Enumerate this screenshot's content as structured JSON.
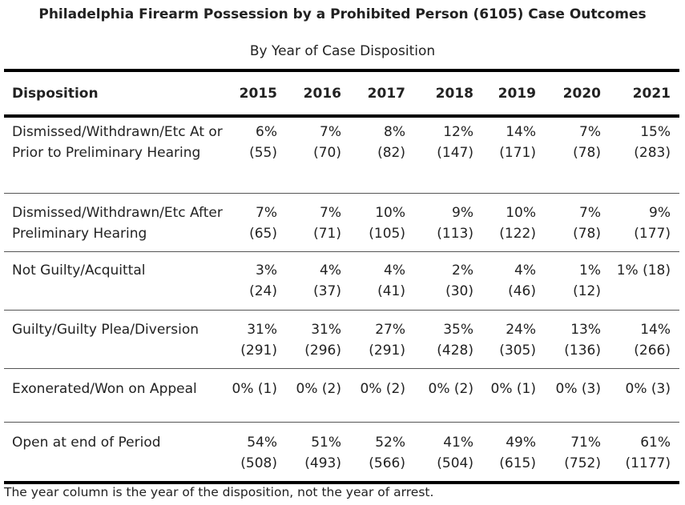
{
  "title": "Philadelphia Firearm Possession by a Prohibited Person (6105) Case Outcomes",
  "subtitle": "By Year of Case Disposition",
  "header": {
    "disposition": "Disposition",
    "years": [
      "2015",
      "2016",
      "2017",
      "2018",
      "2019",
      "2020",
      "2021"
    ]
  },
  "rows": [
    {
      "label": "Dismissed/Withdrawn/Etc At or Prior to Preliminary Hearing",
      "pct": [
        "6%",
        "7%",
        "8%",
        "12%",
        "14%",
        "7%",
        "15%"
      ],
      "count": [
        "(55)",
        "(70)",
        "(82)",
        "(147)",
        "(171)",
        "(78)",
        "(283)"
      ]
    },
    {
      "label": "Dismissed/Withdrawn/Etc After Preliminary Hearing",
      "pct": [
        "7%",
        "7%",
        "10%",
        "9%",
        "10%",
        "7%",
        "9%"
      ],
      "count": [
        "(65)",
        "(71)",
        "(105)",
        "(113)",
        "(122)",
        "(78)",
        "(177)"
      ]
    },
    {
      "label": "Not Guilty/Acquittal",
      "pct": [
        "3%",
        "4%",
        "4%",
        "2%",
        "4%",
        "1%",
        "1% (18)"
      ],
      "count": [
        "(24)",
        "(37)",
        "(41)",
        "(30)",
        "(46)",
        "(12)",
        ""
      ]
    },
    {
      "label": "Guilty/Guilty Plea/Diversion",
      "pct": [
        "31%",
        "31%",
        "27%",
        "35%",
        "24%",
        "13%",
        "14%"
      ],
      "count": [
        "(291)",
        "(296)",
        "(291)",
        "(428)",
        "(305)",
        "(136)",
        "(266)"
      ]
    },
    {
      "label": "Exonerated/Won on Appeal",
      "pct": [
        "0% (1)",
        "0% (2)",
        "0% (2)",
        "0% (2)",
        "0% (1)",
        "0% (3)",
        "0% (3)"
      ],
      "count": [
        "",
        "",
        "",
        "",
        "",
        "",
        ""
      ]
    },
    {
      "label": "Open at end of Period",
      "pct": [
        "54%",
        "51%",
        "52%",
        "41%",
        "49%",
        "71%",
        "61%"
      ],
      "count": [
        "(508)",
        "(493)",
        "(566)",
        "(504)",
        "(615)",
        "(752)",
        "(1177)"
      ]
    }
  ],
  "footnote": "The year column is the year of the disposition, not the year of arrest."
}
